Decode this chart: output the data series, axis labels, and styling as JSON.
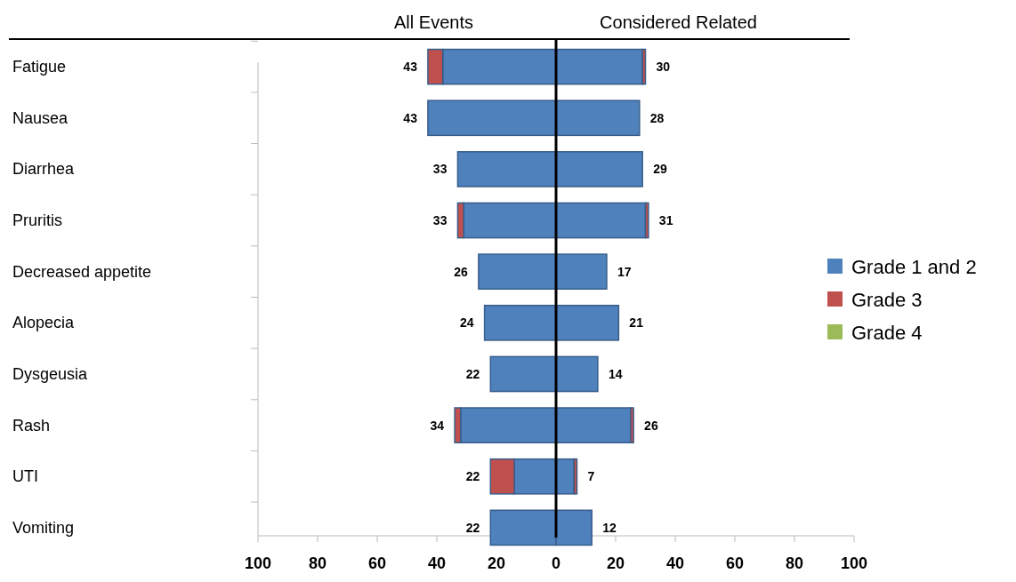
{
  "chart_data": {
    "type": "bar",
    "orientation": "horizontal",
    "stacked": true,
    "categories": [
      "Fatigue",
      "Nausea",
      "Diarrhea",
      "Pruritis",
      "Decreased appetite",
      "Alopecia",
      "Dysgeusia",
      "Rash",
      "UTI",
      "Vomiting"
    ],
    "series": [
      {
        "name": "Grade 1 and 2",
        "color": "#4f81bd",
        "values": [
          -38,
          -43,
          -33,
          -31,
          -26,
          -24,
          -22,
          -32,
          -14,
          -22
        ]
      },
      {
        "name": "Grade 3",
        "color": "#c0504d",
        "values": [
          -5,
          0,
          0,
          -2,
          0,
          0,
          0,
          -2,
          -8,
          0
        ]
      },
      {
        "name": "Grade 4",
        "color": "#9bbb59",
        "values": [
          0,
          0,
          0,
          0,
          0,
          0,
          0,
          0,
          0,
          0
        ]
      },
      {
        "color": "#4f81bd",
        "values": [
          29,
          28,
          29,
          30,
          17,
          21,
          14,
          25,
          6,
          12
        ]
      },
      {
        "color": "#c0504d",
        "values": [
          1,
          0,
          0,
          1,
          0,
          0,
          0,
          1,
          1,
          0
        ]
      }
    ],
    "xlim": [
      -100,
      100
    ],
    "xticks": [
      {
        "value": -100,
        "label": "100"
      },
      {
        "value": -80,
        "label": "80"
      },
      {
        "value": -60,
        "label": "60"
      },
      {
        "value": -40,
        "label": "40"
      },
      {
        "value": -20,
        "label": "20"
      },
      0,
      20,
      40,
      60,
      80,
      100
    ],
    "annotations": [
      "All Events",
      "Considered Related",
      {
        "text": "43",
        "x": -43,
        "y": "Fatigue"
      },
      {
        "text": "43",
        "x": -43,
        "y": "Nausea"
      },
      {
        "text": "33",
        "x": -33,
        "y": "Diarrhea"
      },
      {
        "text": "33",
        "x": -33,
        "y": "Pruritis"
      },
      {
        "text": "26",
        "x": -26,
        "y": "Decreased appetite"
      },
      {
        "text": "24",
        "x": -24,
        "y": "Alopecia"
      },
      {
        "text": "22",
        "x": -22,
        "y": "Dysgeusia"
      },
      {
        "text": "34",
        "x": -34,
        "y": "Rash"
      },
      {
        "text": "22",
        "x": -22,
        "y": "UTI"
      },
      {
        "text": "22",
        "x": -22,
        "y": "Vomiting"
      },
      {
        "text": "30",
        "x": 30,
        "y": "Fatigue"
      },
      {
        "text": "28",
        "x": 28,
        "y": "Nausea"
      },
      {
        "text": "29",
        "x": 29,
        "y": "Diarrhea"
      },
      {
        "text": "31",
        "x": 31,
        "y": "Pruritis"
      },
      {
        "text": "17",
        "x": 17,
        "y": "Decreased appetite"
      },
      {
        "text": "21",
        "x": 21,
        "y": "Alopecia"
      },
      {
        "text": "14",
        "x": 14,
        "y": "Dysgeusia"
      },
      {
        "text": "26",
        "x": 26,
        "y": "Rash"
      },
      {
        "text": "7",
        "x": 7,
        "y": "UTI"
      },
      {
        "text": "12",
        "x": 12,
        "y": "Vomiting"
      }
    ],
    "legend": "right",
    "grid": false
  }
}
